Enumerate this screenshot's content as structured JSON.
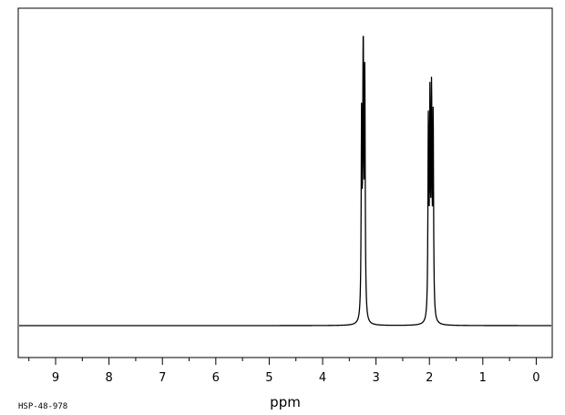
{
  "chart_data": {
    "type": "line",
    "title": "",
    "xlabel": "ppm",
    "ylabel": "",
    "xlim": [
      9.7,
      -0.3
    ],
    "x_reversed": true,
    "grid": false,
    "major_ticks": [
      9,
      8,
      7,
      6,
      5,
      4,
      3,
      2,
      1,
      0
    ],
    "tick_labels": [
      "9",
      "8",
      "7",
      "6",
      "5",
      "4",
      "3",
      "2",
      "1",
      "0"
    ],
    "spectrum_code": "HSP-48-978",
    "baseline": 0.0,
    "series": [
      {
        "peaks": [
          {
            "ppm": 3.27,
            "height": 0.68
          },
          {
            "ppm": 3.24,
            "height": 1.0
          },
          {
            "ppm": 3.21,
            "height": 0.82
          },
          {
            "ppm": 2.02,
            "height": 0.67
          },
          {
            "ppm": 1.99,
            "height": 0.72
          },
          {
            "ppm": 1.96,
            "height": 0.74
          },
          {
            "ppm": 1.93,
            "height": 0.68
          }
        ],
        "color": "#000000"
      }
    ]
  }
}
